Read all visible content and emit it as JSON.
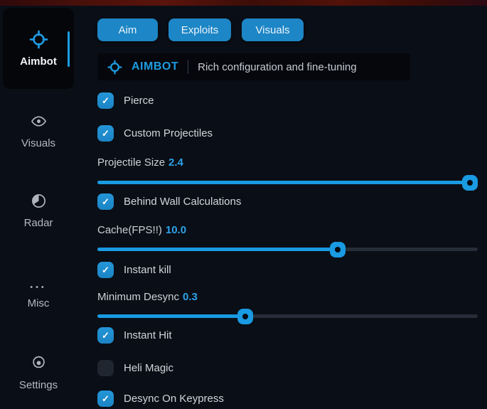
{
  "colors": {
    "background": "#0a0e16",
    "panel": "#05070c",
    "accent_blue": "#1d86c6",
    "slider_blue": "#199ae2",
    "track_gray": "#262d38",
    "value_blue": "#2da3ea",
    "top_strip_red": "#4a100a",
    "text_primary": "#d2d6db",
    "text_dim": "#b4bac2"
  },
  "sidebar": {
    "items": [
      {
        "label": "Aimbot",
        "icon": "crosshair-icon",
        "active": true
      },
      {
        "label": "Visuals",
        "icon": "eye-icon",
        "active": false
      },
      {
        "label": "Radar",
        "icon": "radar-icon",
        "active": false
      },
      {
        "label": "Misc",
        "icon": "ellipsis-icon",
        "active": false
      },
      {
        "label": "Settings",
        "icon": "gear-icon",
        "active": false
      }
    ]
  },
  "tabs": [
    {
      "label": "Aim"
    },
    {
      "label": "Exploits"
    },
    {
      "label": "Visuals"
    }
  ],
  "header": {
    "icon": "crosshair-icon",
    "title": "AIMBOT",
    "divider": "|",
    "subtitle": "Rich configuration and fine-tuning"
  },
  "controls": [
    {
      "type": "checkbox",
      "label": "Pierce",
      "checked": true
    },
    {
      "type": "checkbox",
      "label": "Custom Projectiles",
      "checked": true
    },
    {
      "type": "slider",
      "label": "Projectile Size",
      "value": "2.4",
      "percent": 98
    },
    {
      "type": "checkbox",
      "label": "Behind Wall Calculations",
      "checked": true
    },
    {
      "type": "slider",
      "label": "Cache(FPS!!)",
      "value": "10.0",
      "percent": 63.2
    },
    {
      "type": "checkbox",
      "label": "Instant kill",
      "checked": true
    },
    {
      "type": "slider",
      "label": "Minimum Desync",
      "value": "0.3",
      "percent": 38.9
    },
    {
      "type": "checkbox",
      "label": "Instant Hit",
      "checked": true
    },
    {
      "type": "checkbox",
      "label": "Heli Magic",
      "checked": false
    },
    {
      "type": "checkbox",
      "label": "Desync On Keypress",
      "checked": true
    }
  ],
  "icons": {
    "check": "✓",
    "ellipsis_dots": "•••"
  }
}
